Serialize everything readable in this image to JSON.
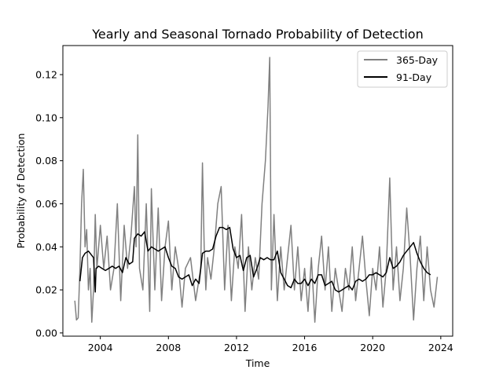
{
  "chart_data": {
    "type": "line",
    "title": "Yearly and Seasonal Tornado Probability of Detection",
    "xlabel": "Time",
    "ylabel": "Probability of Detection",
    "xlim": [
      2001.8,
      2024.7
    ],
    "ylim": [
      -0.0015,
      0.1335
    ],
    "xticks": [
      2004,
      2008,
      2012,
      2016,
      2020,
      2024
    ],
    "yticks": [
      0.0,
      0.02,
      0.04,
      0.06,
      0.08,
      0.1,
      0.12
    ],
    "ytick_labels": [
      "0.00",
      "0.02",
      "0.04",
      "0.06",
      "0.08",
      "0.10",
      "0.12"
    ],
    "grid": false,
    "legend": {
      "placement": "top-right"
    },
    "series": [
      {
        "name": "365-Day",
        "color": "#808080",
        "x": [
          2002.5,
          2002.6,
          2002.7,
          2002.8,
          2002.9,
          2003.0,
          2003.1,
          2003.2,
          2003.3,
          2003.4,
          2003.5,
          2003.6,
          2003.7,
          2003.8,
          2003.9,
          2004.0,
          2004.2,
          2004.4,
          2004.6,
          2004.8,
          2005.0,
          2005.2,
          2005.4,
          2005.6,
          2005.8,
          2006.0,
          2006.1,
          2006.2,
          2006.3,
          2006.5,
          2006.7,
          2006.9,
          2007.0,
          2007.2,
          2007.4,
          2007.6,
          2007.8,
          2008.0,
          2008.2,
          2008.4,
          2008.6,
          2008.8,
          2009.0,
          2009.3,
          2009.6,
          2009.9,
          2010.0,
          2010.1,
          2010.2,
          2010.3,
          2010.5,
          2010.7,
          2010.9,
          2011.1,
          2011.3,
          2011.5,
          2011.7,
          2011.9,
          2012.1,
          2012.3,
          2012.5,
          2012.7,
          2012.9,
          2013.1,
          2013.3,
          2013.5,
          2013.7,
          2013.85,
          2013.95,
          2014.05,
          2014.2,
          2014.4,
          2014.6,
          2014.8,
          2015.0,
          2015.2,
          2015.4,
          2015.6,
          2015.8,
          2016.0,
          2016.2,
          2016.4,
          2016.6,
          2016.8,
          2017.0,
          2017.2,
          2017.4,
          2017.6,
          2017.8,
          2018.0,
          2018.2,
          2018.4,
          2018.6,
          2018.8,
          2019.0,
          2019.2,
          2019.4,
          2019.6,
          2019.8,
          2020.0,
          2020.2,
          2020.4,
          2020.6,
          2020.8,
          2021.0,
          2021.1,
          2021.2,
          2021.4,
          2021.6,
          2021.8,
          2022.0,
          2022.2,
          2022.4,
          2022.6,
          2022.8,
          2023.0,
          2023.2,
          2023.4,
          2023.6,
          2023.8
        ],
        "y": [
          0.015,
          0.006,
          0.007,
          0.03,
          0.06,
          0.076,
          0.04,
          0.048,
          0.02,
          0.03,
          0.005,
          0.02,
          0.055,
          0.03,
          0.04,
          0.05,
          0.03,
          0.045,
          0.02,
          0.03,
          0.06,
          0.015,
          0.05,
          0.03,
          0.045,
          0.068,
          0.04,
          0.092,
          0.03,
          0.02,
          0.06,
          0.01,
          0.067,
          0.02,
          0.058,
          0.015,
          0.04,
          0.052,
          0.02,
          0.04,
          0.03,
          0.012,
          0.03,
          0.035,
          0.015,
          0.03,
          0.079,
          0.04,
          0.02,
          0.035,
          0.025,
          0.04,
          0.06,
          0.068,
          0.02,
          0.05,
          0.015,
          0.04,
          0.03,
          0.055,
          0.01,
          0.04,
          0.02,
          0.035,
          0.025,
          0.06,
          0.08,
          0.105,
          0.128,
          0.02,
          0.055,
          0.015,
          0.04,
          0.02,
          0.035,
          0.05,
          0.02,
          0.04,
          0.015,
          0.03,
          0.01,
          0.035,
          0.005,
          0.03,
          0.045,
          0.02,
          0.04,
          0.01,
          0.03,
          0.02,
          0.01,
          0.03,
          0.02,
          0.04,
          0.015,
          0.03,
          0.045,
          0.025,
          0.008,
          0.03,
          0.02,
          0.04,
          0.012,
          0.03,
          0.072,
          0.045,
          0.02,
          0.04,
          0.015,
          0.03,
          0.058,
          0.035,
          0.006,
          0.03,
          0.045,
          0.015,
          0.04,
          0.02,
          0.012,
          0.026
        ]
      },
      {
        "name": "91-Day",
        "color": "#000000",
        "x": [
          2002.8,
          2002.95,
          2003.1,
          2003.3,
          2003.5,
          2003.6,
          2003.7,
          2003.75,
          2003.9,
          2004.1,
          2004.3,
          2004.5,
          2004.7,
          2004.9,
          2005.1,
          2005.3,
          2005.5,
          2005.7,
          2005.9,
          2006.0,
          2006.2,
          2006.4,
          2006.6,
          2006.8,
          2007.0,
          2007.2,
          2007.4,
          2007.6,
          2007.8,
          2008.0,
          2008.2,
          2008.4,
          2008.6,
          2008.8,
          2009.0,
          2009.2,
          2009.4,
          2009.6,
          2009.8,
          2010.0,
          2010.2,
          2010.4,
          2010.6,
          2010.8,
          2011.0,
          2011.2,
          2011.4,
          2011.6,
          2011.8,
          2012.0,
          2012.2,
          2012.4,
          2012.6,
          2012.8,
          2013.0,
          2013.2,
          2013.4,
          2013.6,
          2013.8,
          2014.0,
          2014.2,
          2014.4,
          2014.6,
          2014.8,
          2015.0,
          2015.2,
          2015.4,
          2015.6,
          2015.8,
          2016.0,
          2016.2,
          2016.4,
          2016.6,
          2016.8,
          2017.0,
          2017.2,
          2017.4,
          2017.6,
          2017.8,
          2018.0,
          2018.2,
          2018.4,
          2018.6,
          2018.8,
          2019.0,
          2019.2,
          2019.4,
          2019.6,
          2019.8,
          2020.0,
          2020.2,
          2020.4,
          2020.6,
          2020.8,
          2021.0,
          2021.2,
          2021.4,
          2021.6,
          2021.8,
          2022.0,
          2022.2,
          2022.4,
          2022.6,
          2022.8,
          2023.0,
          2023.2,
          2023.4
        ],
        "y": [
          0.024,
          0.035,
          0.037,
          0.038,
          0.036,
          0.035,
          0.019,
          0.03,
          0.031,
          0.03,
          0.029,
          0.03,
          0.031,
          0.03,
          0.031,
          0.028,
          0.035,
          0.032,
          0.033,
          0.044,
          0.046,
          0.045,
          0.047,
          0.038,
          0.04,
          0.039,
          0.038,
          0.039,
          0.04,
          0.035,
          0.031,
          0.03,
          0.026,
          0.025,
          0.026,
          0.027,
          0.022,
          0.025,
          0.023,
          0.037,
          0.038,
          0.038,
          0.039,
          0.045,
          0.049,
          0.049,
          0.048,
          0.049,
          0.039,
          0.035,
          0.036,
          0.029,
          0.035,
          0.036,
          0.026,
          0.03,
          0.035,
          0.034,
          0.035,
          0.034,
          0.034,
          0.038,
          0.028,
          0.025,
          0.022,
          0.021,
          0.025,
          0.023,
          0.023,
          0.025,
          0.022,
          0.025,
          0.023,
          0.027,
          0.027,
          0.022,
          0.023,
          0.024,
          0.02,
          0.019,
          0.02,
          0.021,
          0.022,
          0.02,
          0.024,
          0.025,
          0.024,
          0.025,
          0.027,
          0.027,
          0.028,
          0.027,
          0.026,
          0.028,
          0.035,
          0.03,
          0.031,
          0.033,
          0.036,
          0.038,
          0.04,
          0.042,
          0.037,
          0.033,
          0.03,
          0.028,
          0.027
        ]
      }
    ]
  }
}
